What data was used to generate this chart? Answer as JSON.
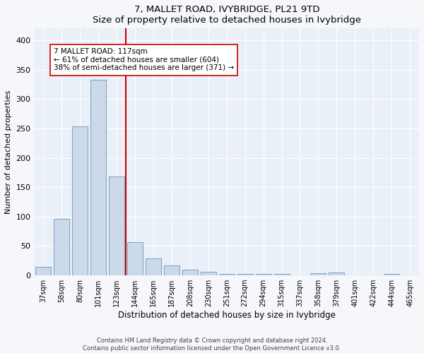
{
  "title": "7, MALLET ROAD, IVYBRIDGE, PL21 9TD",
  "subtitle": "Size of property relative to detached houses in Ivybridge",
  "xlabel": "Distribution of detached houses by size in Ivybridge",
  "ylabel": "Number of detached properties",
  "bar_color": "#ccd9ea",
  "bar_edge_color": "#7fa8c8",
  "background_color": "#eaf0f8",
  "grid_color": "#ffffff",
  "fig_facecolor": "#f5f7fa",
  "categories": [
    "37sqm",
    "58sqm",
    "80sqm",
    "101sqm",
    "123sqm",
    "144sqm",
    "165sqm",
    "187sqm",
    "208sqm",
    "230sqm",
    "251sqm",
    "272sqm",
    "294sqm",
    "315sqm",
    "337sqm",
    "358sqm",
    "379sqm",
    "401sqm",
    "422sqm",
    "444sqm",
    "465sqm"
  ],
  "values": [
    15,
    96,
    253,
    333,
    168,
    57,
    29,
    17,
    10,
    6,
    3,
    3,
    3,
    2,
    0,
    4,
    5,
    0,
    0,
    3,
    0
  ],
  "ylim": [
    0,
    420
  ],
  "yticks": [
    0,
    50,
    100,
    150,
    200,
    250,
    300,
    350,
    400
  ],
  "property_bar_index": 4,
  "property_line_color": "#cc0000",
  "annotation_text": "7 MALLET ROAD: 117sqm\n← 61% of detached houses are smaller (604)\n38% of semi-detached houses are larger (371) →",
  "annotation_box_color": "#ffffff",
  "annotation_box_edge": "#cc0000",
  "footer_line1": "Contains HM Land Registry data © Crown copyright and database right 2024.",
  "footer_line2": "Contains public sector information licensed under the Open Government Licence v3.0."
}
